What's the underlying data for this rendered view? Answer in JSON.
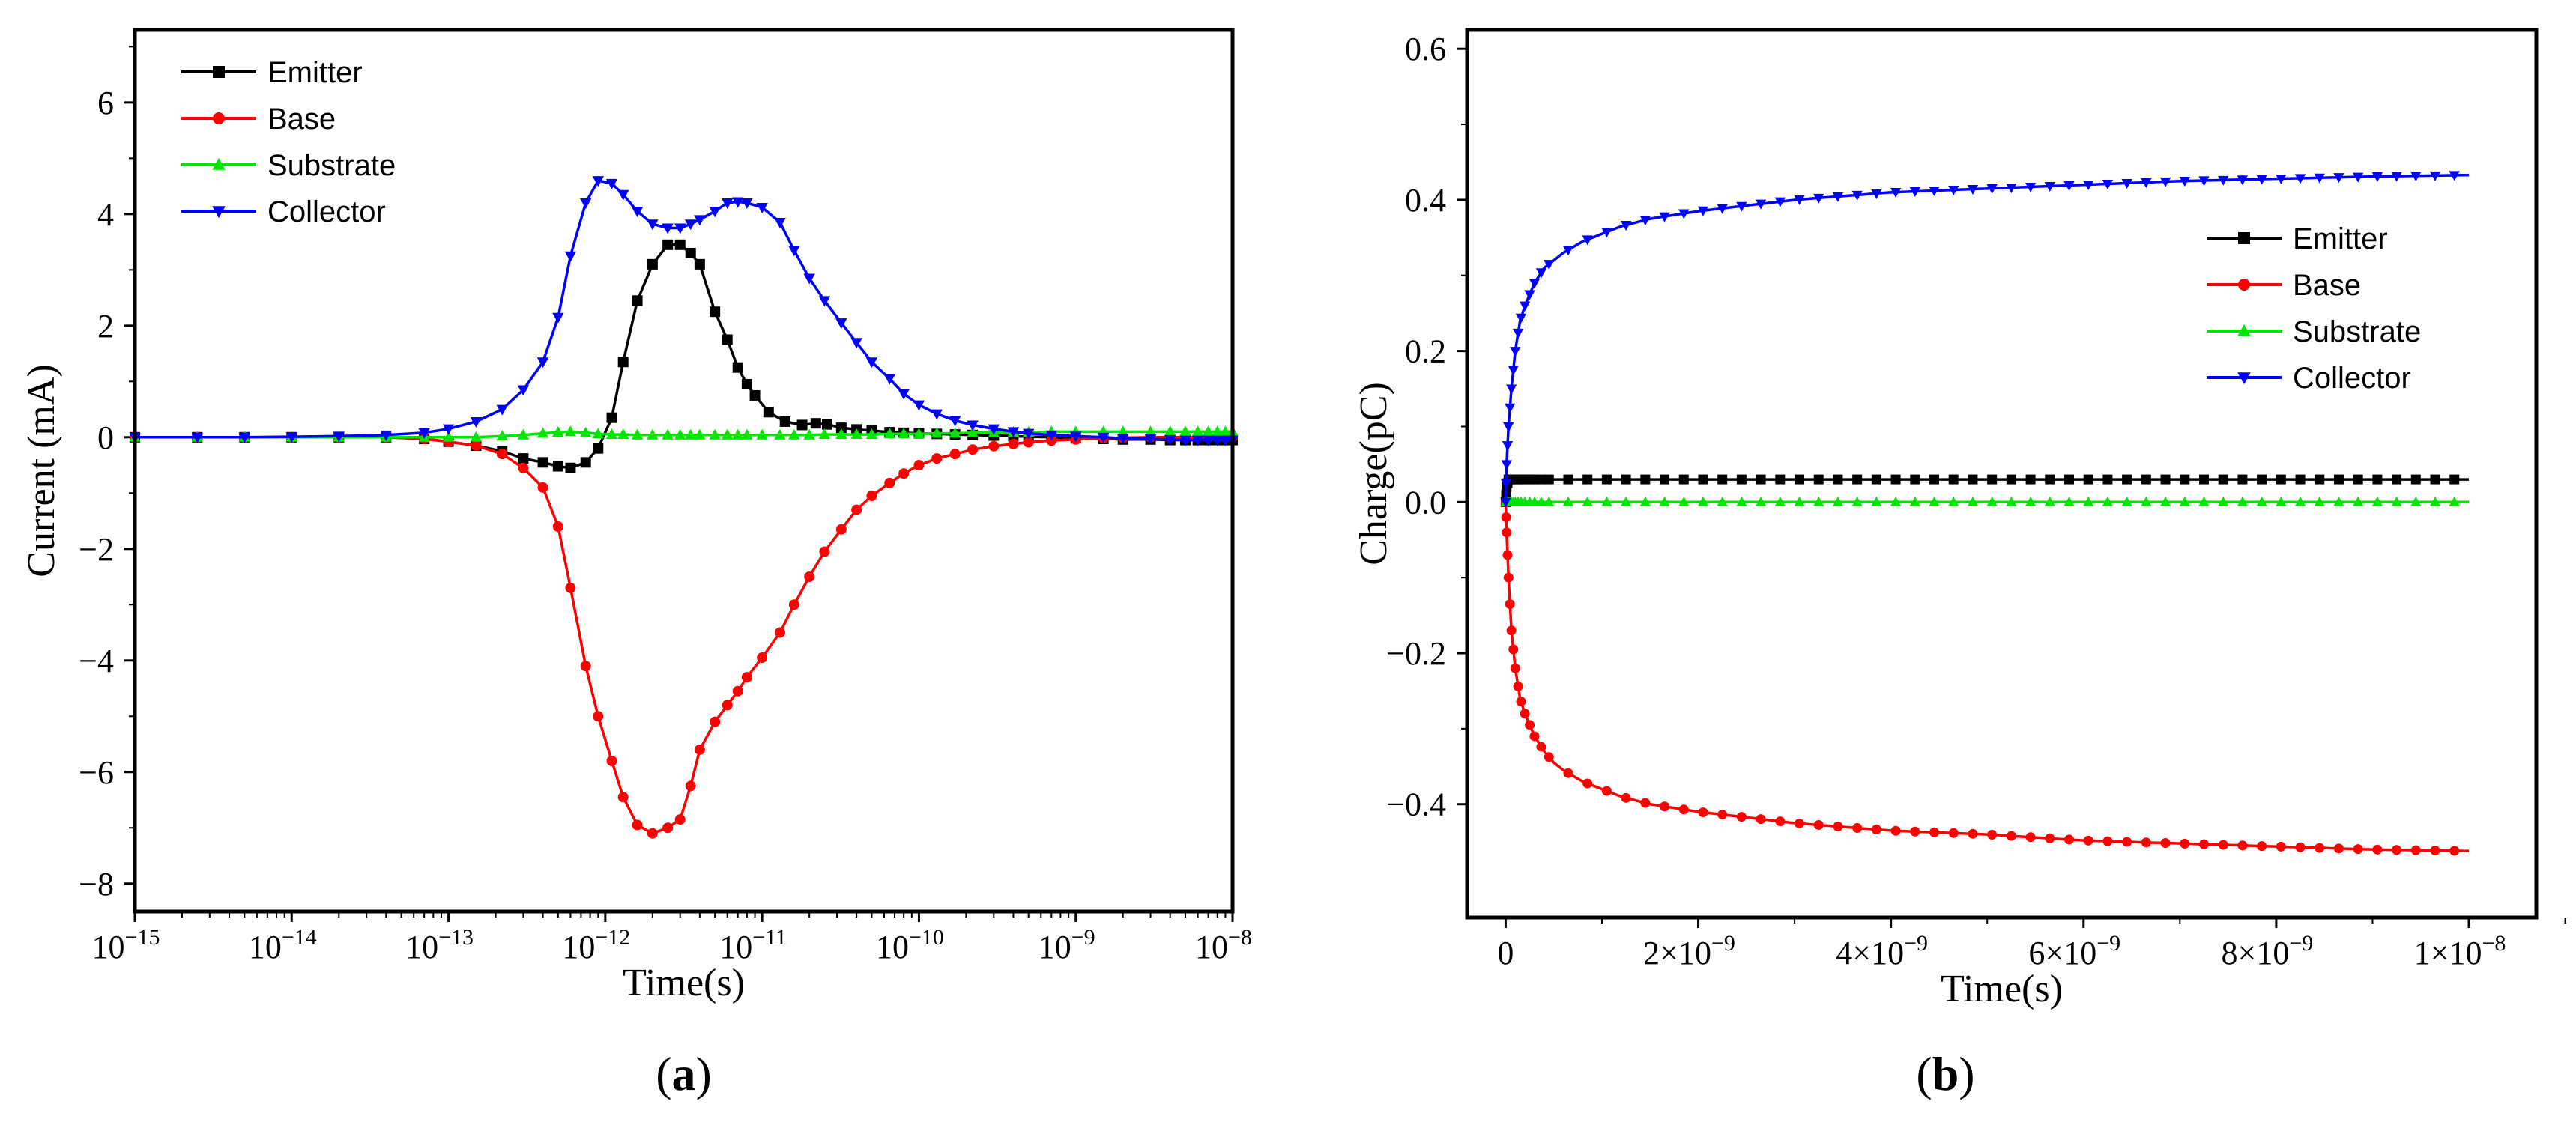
{
  "chart_data": [
    {
      "type": "line",
      "panel": "(a)",
      "panel_letter": "a",
      "xscale": "log",
      "xlim": [
        1e-15,
        1e-08
      ],
      "ylim": [
        -8.5,
        7.3
      ],
      "xlabel": "Time(s)",
      "ylabel": "Current (mA)",
      "xticks": [
        {
          "value": 1e-15,
          "base": "10",
          "exp": "−15"
        },
        {
          "value": 1e-14,
          "base": "10",
          "exp": "−14"
        },
        {
          "value": 1e-13,
          "base": "10",
          "exp": "−13"
        },
        {
          "value": 1e-12,
          "base": "10",
          "exp": "−12"
        },
        {
          "value": 1e-11,
          "base": "10",
          "exp": "−11"
        },
        {
          "value": 1e-10,
          "base": "10",
          "exp": "−10"
        },
        {
          "value": 1e-09,
          "base": "10",
          "exp": "−9"
        },
        {
          "value": 1e-08,
          "base": "10",
          "exp": "−8"
        }
      ],
      "yticks": [
        {
          "value": -8,
          "label": "−8"
        },
        {
          "value": -6,
          "label": "−6"
        },
        {
          "value": -4,
          "label": "−4"
        },
        {
          "value": -2,
          "label": "−2"
        },
        {
          "value": 0,
          "label": "0"
        },
        {
          "value": 2,
          "label": "2"
        },
        {
          "value": 4,
          "label": "4"
        },
        {
          "value": 6,
          "label": "6"
        }
      ],
      "legend_position": "top-left",
      "series": [
        {
          "name": "Emitter",
          "color": "#000000",
          "marker": "square",
          "x": [
            1e-15,
            2.5e-15,
            5e-15,
            1e-14,
            2e-14,
            4e-14,
            7e-14,
            1e-13,
            1.5e-13,
            2.2e-13,
            3e-13,
            4e-13,
            5e-13,
            6e-13,
            7.5e-13,
            9e-13,
            1.1e-12,
            1.3e-12,
            1.6e-12,
            2e-12,
            2.5e-12,
            3e-12,
            3.5e-12,
            4e-12,
            5e-12,
            6e-12,
            7e-12,
            8e-12,
            9e-12,
            1.1e-11,
            1.4e-11,
            1.8e-11,
            2.2e-11,
            2.6e-11,
            3.2e-11,
            4e-11,
            5e-11,
            6.5e-11,
            8e-11,
            1e-10,
            1.3e-10,
            1.7e-10,
            2.2e-10,
            3e-10,
            4e-10,
            5e-10,
            7e-10,
            1e-09,
            1.5e-09,
            2e-09,
            3e-09,
            4e-09,
            5e-09,
            6e-09,
            7e-09,
            8e-09,
            9e-09,
            1e-08
          ],
          "values": [
            0,
            0,
            0,
            0,
            0,
            0,
            -0.03,
            -0.08,
            -0.15,
            -0.25,
            -0.38,
            -0.45,
            -0.52,
            -0.55,
            -0.45,
            -0.2,
            0.35,
            1.35,
            2.45,
            3.1,
            3.45,
            3.45,
            3.3,
            3.1,
            2.25,
            1.75,
            1.25,
            0.95,
            0.75,
            0.45,
            0.28,
            0.22,
            0.25,
            0.23,
            0.17,
            0.14,
            0.12,
            0.09,
            0.08,
            0.07,
            0.06,
            0.05,
            0.04,
            0.03,
            0.02,
            0.01,
            0,
            -0.02,
            -0.03,
            -0.04,
            -0.04,
            -0.05,
            -0.05,
            -0.05,
            -0.05,
            -0.05,
            -0.05,
            -0.05
          ]
        },
        {
          "name": "Base",
          "color": "#ff0000",
          "marker": "circle",
          "x": [
            1e-15,
            2.5e-15,
            5e-15,
            1e-14,
            2e-14,
            4e-14,
            7e-14,
            1e-13,
            1.5e-13,
            2.2e-13,
            3e-13,
            4e-13,
            5e-13,
            6e-13,
            7.5e-13,
            9e-13,
            1.1e-12,
            1.3e-12,
            1.6e-12,
            2e-12,
            2.5e-12,
            3e-12,
            3.5e-12,
            4e-12,
            5e-12,
            6e-12,
            7e-12,
            8e-12,
            1e-11,
            1.3e-11,
            1.6e-11,
            2e-11,
            2.5e-11,
            3.2e-11,
            4e-11,
            5e-11,
            6.5e-11,
            8e-11,
            1e-10,
            1.3e-10,
            1.7e-10,
            2.2e-10,
            3e-10,
            4e-10,
            5e-10,
            7e-10,
            1e-09,
            1.5e-09,
            2e-09,
            3e-09,
            4e-09,
            5e-09,
            6e-09,
            7e-09,
            8e-09,
            9e-09,
            1e-08
          ],
          "values": [
            0,
            0,
            0,
            0,
            0,
            0,
            -0.03,
            -0.08,
            -0.15,
            -0.3,
            -0.55,
            -0.9,
            -1.6,
            -2.7,
            -4.1,
            -5.0,
            -5.8,
            -6.45,
            -6.95,
            -7.1,
            -7.0,
            -6.85,
            -6.25,
            -5.6,
            -5.1,
            -4.8,
            -4.55,
            -4.3,
            -3.95,
            -3.5,
            -3.0,
            -2.5,
            -2.05,
            -1.65,
            -1.3,
            -1.05,
            -0.82,
            -0.65,
            -0.5,
            -0.38,
            -0.3,
            -0.22,
            -0.16,
            -0.12,
            -0.09,
            -0.06,
            -0.04,
            -0.02,
            -0.01,
            0,
            0,
            0,
            0,
            0,
            0,
            0,
            0
          ]
        },
        {
          "name": "Substrate",
          "color": "#00e600",
          "marker": "triangle-up",
          "x": [
            1e-15,
            2.5e-15,
            5e-15,
            1e-14,
            2e-14,
            4e-14,
            7e-14,
            1e-13,
            1.5e-13,
            2.2e-13,
            3e-13,
            4e-13,
            5e-13,
            6e-13,
            7.5e-13,
            9e-13,
            1.1e-12,
            1.3e-12,
            1.6e-12,
            2e-12,
            2.5e-12,
            3e-12,
            3.5e-12,
            4e-12,
            5e-12,
            6e-12,
            7e-12,
            8e-12,
            1e-11,
            1.3e-11,
            1.6e-11,
            2e-11,
            2.5e-11,
            3.2e-11,
            4e-11,
            5e-11,
            6.5e-11,
            8e-11,
            1e-10,
            1.3e-10,
            1.7e-10,
            2.2e-10,
            3e-10,
            4e-10,
            5e-10,
            7e-10,
            1e-09,
            1.5e-09,
            2e-09,
            3e-09,
            4e-09,
            5e-09,
            6e-09,
            7e-09,
            8e-09,
            9e-09,
            1e-08
          ],
          "values": [
            0,
            0,
            0,
            0,
            0,
            0,
            0,
            0,
            0,
            0.02,
            0.04,
            0.07,
            0.09,
            0.1,
            0.08,
            0.06,
            0.05,
            0.05,
            0.04,
            0.04,
            0.04,
            0.04,
            0.04,
            0.04,
            0.04,
            0.04,
            0.04,
            0.04,
            0.04,
            0.04,
            0.04,
            0.04,
            0.05,
            0.05,
            0.05,
            0.05,
            0.06,
            0.06,
            0.06,
            0.07,
            0.07,
            0.08,
            0.08,
            0.09,
            0.09,
            0.1,
            0.1,
            0.1,
            0.1,
            0.1,
            0.1,
            0.1,
            0.1,
            0.1,
            0.1,
            0.1,
            0.1
          ]
        },
        {
          "name": "Collector",
          "color": "#0000ff",
          "marker": "triangle-down",
          "x": [
            1e-15,
            2.5e-15,
            5e-15,
            1e-14,
            2e-14,
            4e-14,
            7e-14,
            1e-13,
            1.5e-13,
            2.2e-13,
            3e-13,
            4e-13,
            5e-13,
            6e-13,
            7.5e-13,
            9e-13,
            1.1e-12,
            1.3e-12,
            1.6e-12,
            2e-12,
            2.5e-12,
            3e-12,
            3.5e-12,
            4e-12,
            5e-12,
            6e-12,
            7e-12,
            8e-12,
            1e-11,
            1.3e-11,
            1.6e-11,
            2e-11,
            2.5e-11,
            3.2e-11,
            4e-11,
            5e-11,
            6.5e-11,
            8e-11,
            1e-10,
            1.3e-10,
            1.7e-10,
            2.2e-10,
            3e-10,
            4e-10,
            5e-10,
            7e-10,
            1e-09,
            1.5e-09,
            2e-09,
            3e-09,
            4e-09,
            5e-09,
            6e-09,
            7e-09,
            8e-09,
            9e-09,
            1e-08
          ],
          "values": [
            0,
            0,
            0,
            0.01,
            0.02,
            0.04,
            0.08,
            0.15,
            0.28,
            0.5,
            0.85,
            1.35,
            2.15,
            3.25,
            4.2,
            4.6,
            4.55,
            4.35,
            4.05,
            3.82,
            3.75,
            3.75,
            3.82,
            3.9,
            4.05,
            4.2,
            4.22,
            4.2,
            4.12,
            3.85,
            3.35,
            2.85,
            2.45,
            2.05,
            1.7,
            1.35,
            1.05,
            0.78,
            0.58,
            0.42,
            0.3,
            0.22,
            0.15,
            0.1,
            0.07,
            0.04,
            0.02,
            0,
            -0.02,
            -0.03,
            -0.04,
            -0.05,
            -0.05,
            -0.05,
            -0.05,
            -0.05,
            -0.05
          ]
        }
      ]
    },
    {
      "type": "line",
      "panel": "(b)",
      "panel_letter": "b",
      "xscale": "linear",
      "xlim": [
        -4e-10,
        1.07e-08
      ],
      "ylim": [
        -0.55,
        0.625
      ],
      "xlabel": "Time(s)",
      "ylabel": "Charge(pC)",
      "xticks": [
        {
          "value": 0,
          "label": "0"
        },
        {
          "value": 2e-09,
          "label": "2×10",
          "exp": "−9"
        },
        {
          "value": 4e-09,
          "label": "4×10",
          "exp": "−9"
        },
        {
          "value": 6e-09,
          "label": "6×10",
          "exp": "−9"
        },
        {
          "value": 8e-09,
          "label": "8×10",
          "exp": "−9"
        },
        {
          "value": 1e-08,
          "label": "1×10",
          "exp": "−8"
        }
      ],
      "yticks": [
        {
          "value": -0.4,
          "label": "−0.4"
        },
        {
          "value": -0.2,
          "label": "−0.2"
        },
        {
          "value": 0.0,
          "label": "0.0"
        },
        {
          "value": 0.2,
          "label": "0.2"
        },
        {
          "value": 0.4,
          "label": "0.4"
        },
        {
          "value": 0.6,
          "label": "0.6"
        }
      ],
      "legend_position": "top-right",
      "series": [
        {
          "name": "Emitter",
          "color": "#000000",
          "marker": "square",
          "curve": "emitter_q",
          "q_inf": 0.03
        },
        {
          "name": "Base",
          "color": "#ff0000",
          "marker": "circle",
          "curve": "base_q",
          "q_inf": -0.462
        },
        {
          "name": "Substrate",
          "color": "#00e600",
          "marker": "triangle-up",
          "curve": "substrate_q",
          "q_inf": 0.0
        },
        {
          "name": "Collector",
          "color": "#0000ff",
          "marker": "triangle-down",
          "curve": "collector_q",
          "q_inf": 0.433
        }
      ],
      "sample_points": {
        "x_ns": [
          0,
          0.01,
          0.03,
          0.06,
          0.1,
          0.15,
          0.2,
          0.3,
          0.4,
          0.5,
          0.6,
          0.8,
          1.0,
          1.2,
          1.5,
          2,
          3,
          4,
          5,
          6,
          7,
          8,
          9,
          10
        ],
        "Emitter": [
          0,
          0.02,
          0.03,
          0.03,
          0.03,
          0.03,
          0.03,
          0.03,
          0.03,
          0.03,
          0.03,
          0.03,
          0.03,
          0.03,
          0.03,
          0.03,
          0.03,
          0.03,
          0.03,
          0.03,
          0.03,
          0.03,
          0.03,
          0.03
        ],
        "Base": [
          0,
          -0.04,
          -0.1,
          -0.17,
          -0.22,
          -0.26,
          -0.28,
          -0.31,
          -0.33,
          -0.345,
          -0.355,
          -0.37,
          -0.38,
          -0.39,
          -0.4,
          -0.41,
          -0.425,
          -0.435,
          -0.44,
          -0.448,
          -0.452,
          -0.456,
          -0.46,
          -0.462
        ],
        "Substrate": [
          0,
          0,
          0,
          0,
          0,
          0,
          0,
          0,
          0,
          0,
          0,
          0,
          0,
          0,
          0,
          0,
          0,
          0,
          0,
          0,
          0,
          0,
          0,
          0
        ],
        "Collector": [
          0,
          0.05,
          0.1,
          0.15,
          0.2,
          0.24,
          0.26,
          0.29,
          0.31,
          0.32,
          0.33,
          0.345,
          0.355,
          0.365,
          0.375,
          0.385,
          0.4,
          0.41,
          0.415,
          0.42,
          0.425,
          0.428,
          0.431,
          0.433
        ]
      }
    }
  ]
}
